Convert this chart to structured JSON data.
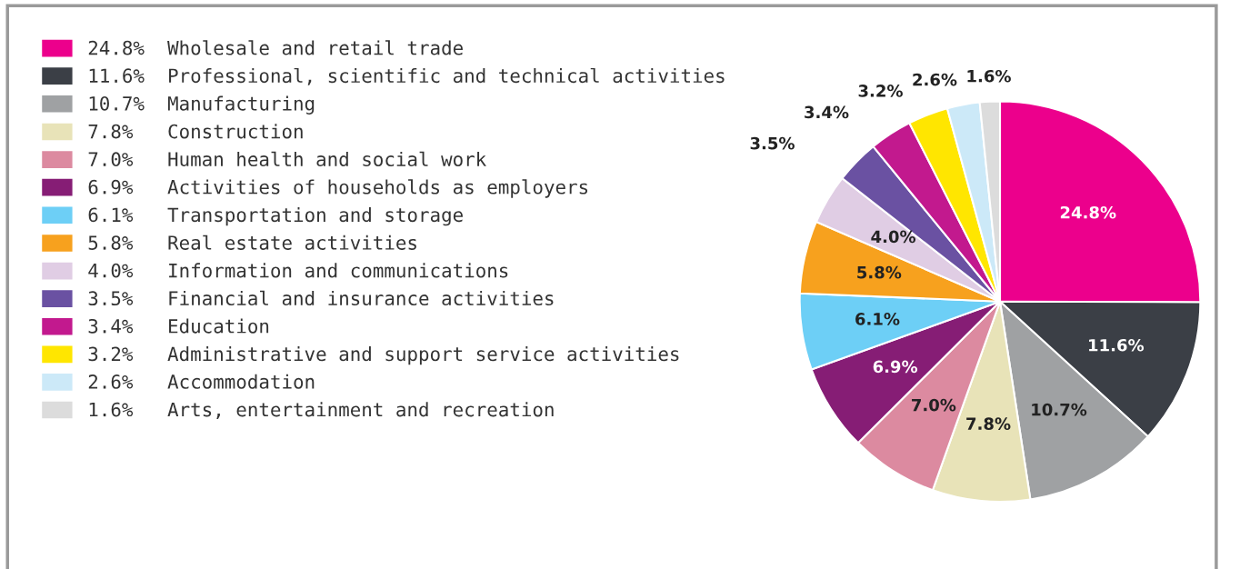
{
  "chart_data": {
    "type": "pie",
    "categories": [
      "Wholesale and retail trade",
      "Professional, scientific and technical activities",
      "Manufacturing",
      "Construction",
      "Human health and social work",
      "Activities of households as employers",
      "Transportation and storage",
      "Real estate activities",
      "Information and communications",
      "Financial and insurance activities",
      "Education",
      "Administrative and support service activities",
      "Accommodation",
      "Arts, entertainment and recreation"
    ],
    "values": [
      24.8,
      11.6,
      10.7,
      7.8,
      7.0,
      6.9,
      6.1,
      5.8,
      4.0,
      3.5,
      3.4,
      3.2,
      2.6,
      1.6
    ],
    "value_labels": [
      "24.8%",
      "11.6%",
      "10.7%",
      "7.8%",
      "7.0%",
      "6.9%",
      "6.1%",
      "5.8%",
      "4.0%",
      "3.5%",
      "3.4%",
      "3.2%",
      "2.6%",
      "1.6%"
    ],
    "colors": [
      "#ec008c",
      "#3b3f46",
      "#9fa1a3",
      "#e8e3b8",
      "#dc8aa0",
      "#861d75",
      "#6dcff6",
      "#f7a11e",
      "#e0cde4",
      "#6a51a2",
      "#c2198e",
      "#ffe600",
      "#cce9f8",
      "#dcdcdc"
    ],
    "legend": "left"
  }
}
